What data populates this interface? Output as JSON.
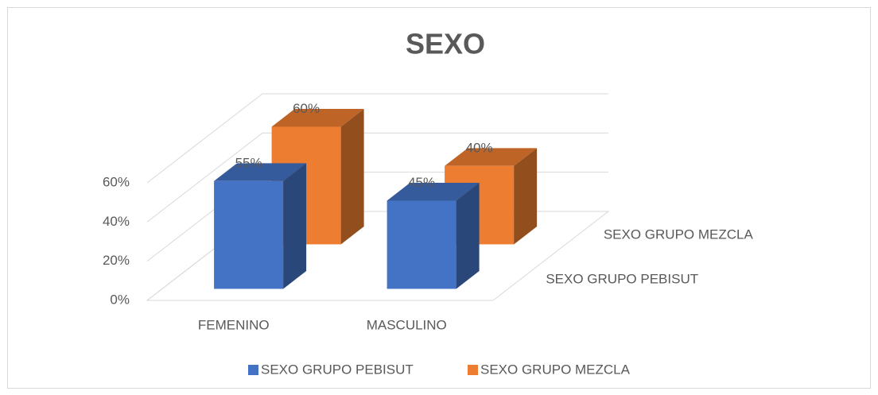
{
  "chart_data": {
    "type": "bar3d",
    "title": "SEXO",
    "categories": [
      "FEMENINO",
      "MASCULINO"
    ],
    "series": [
      {
        "name": "SEXO GRUPO PEBISUT",
        "color": "#4472c4",
        "values": [
          55,
          45
        ],
        "value_labels": [
          "55%",
          "45%"
        ]
      },
      {
        "name": "SEXO GRUPO MEZCLA",
        "color": "#ed7d31",
        "values": [
          60,
          40
        ],
        "value_labels": [
          "60%",
          "40%"
        ]
      }
    ],
    "ylim": [
      0,
      60
    ],
    "yticks": [
      {
        "value": 0,
        "label": "0%"
      },
      {
        "value": 20,
        "label": "20%"
      },
      {
        "value": 40,
        "label": "40%"
      },
      {
        "value": 60,
        "label": "60%"
      }
    ],
    "grid": true,
    "legend": "bottom"
  }
}
